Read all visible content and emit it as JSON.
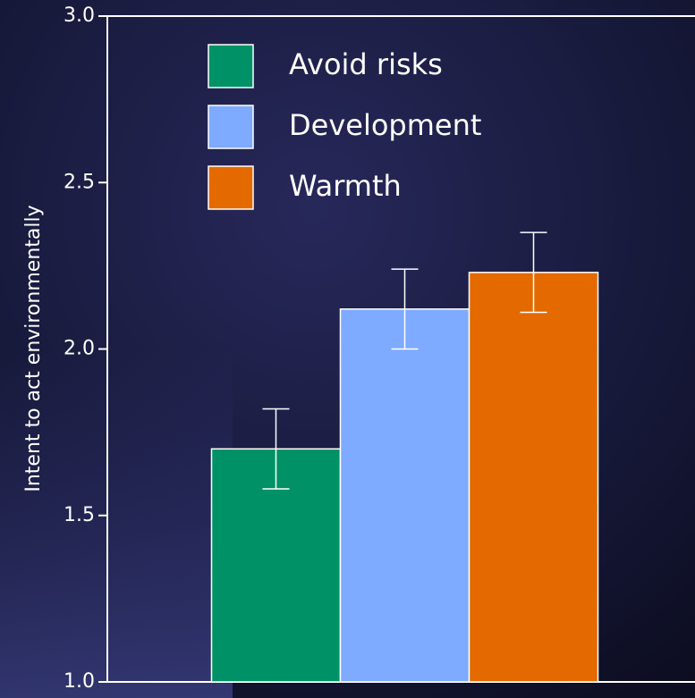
{
  "chart_data": {
    "type": "bar",
    "y_label": "Intent to act environmentally",
    "categories": [
      null
    ],
    "series": [
      {
        "name": "Avoid risks",
        "color": "#009266",
        "values": [
          1.7
        ],
        "errors": [
          0.12
        ]
      },
      {
        "name": "Development",
        "color": "#7eaaff",
        "values": [
          2.12
        ],
        "errors": [
          0.12
        ]
      },
      {
        "name": "Warmth",
        "color": "#e46a00",
        "values": [
          2.23
        ],
        "errors": [
          0.12
        ]
      }
    ],
    "ylim": [
      1.0,
      3.0
    ],
    "yticks": [
      {
        "value": 1.0,
        "label": "1.0"
      },
      1.5,
      {
        "value": 2.0,
        "label": "2.0"
      },
      2.5,
      {
        "value": 3.0,
        "label": "3.0"
      }
    ],
    "legend": "upper left"
  }
}
